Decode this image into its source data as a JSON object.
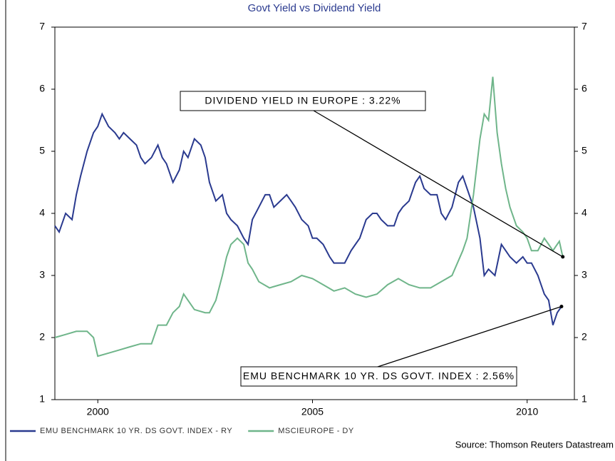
{
  "chart_data": {
    "type": "line",
    "title": "Govt Yield vs Dividend Yield",
    "source": "Source: Thomson Reuters Datastream",
    "xlim": [
      1999,
      2011.1
    ],
    "xticks": [
      2000,
      2005,
      2010
    ],
    "ylim": [
      1,
      7
    ],
    "yticks": [
      1,
      2,
      3,
      4,
      5,
      6,
      7
    ],
    "y2lim": [
      1,
      7
    ],
    "y2ticks": [
      1,
      2,
      3,
      4,
      5,
      6,
      7
    ],
    "annotations": [
      "DIVIDEND YIELD IN EUROPE : 3.22%",
      "EMU BENCHMARK 10 YR. DS GOVT. INDEX : 2.56%"
    ],
    "series": [
      {
        "name": "EMU BENCHMARK 10 YR. DS GOVT. INDEX - RY",
        "color": "#2a3a8f",
        "x": [
          1999.0,
          1999.1,
          1999.25,
          1999.4,
          1999.5,
          1999.6,
          1999.75,
          1999.9,
          2000.0,
          2000.1,
          2000.25,
          2000.4,
          2000.5,
          2000.6,
          2000.75,
          2000.9,
          2001.0,
          2001.1,
          2001.25,
          2001.4,
          2001.5,
          2001.6,
          2001.75,
          2001.9,
          2002.0,
          2002.1,
          2002.25,
          2002.4,
          2002.5,
          2002.6,
          2002.75,
          2002.9,
          2003.0,
          2003.1,
          2003.25,
          2003.4,
          2003.5,
          2003.6,
          2003.75,
          2003.9,
          2004.0,
          2004.1,
          2004.25,
          2004.4,
          2004.5,
          2004.6,
          2004.75,
          2004.9,
          2005.0,
          2005.1,
          2005.25,
          2005.4,
          2005.5,
          2005.6,
          2005.75,
          2005.9,
          2006.0,
          2006.1,
          2006.25,
          2006.4,
          2006.5,
          2006.6,
          2006.75,
          2006.9,
          2007.0,
          2007.1,
          2007.25,
          2007.4,
          2007.5,
          2007.6,
          2007.75,
          2007.9,
          2008.0,
          2008.1,
          2008.25,
          2008.4,
          2008.5,
          2008.6,
          2008.75,
          2008.9,
          2009.0,
          2009.1,
          2009.25,
          2009.4,
          2009.5,
          2009.6,
          2009.75,
          2009.9,
          2010.0,
          2010.1,
          2010.25,
          2010.4,
          2010.5,
          2010.6,
          2010.7,
          2010.8
        ],
        "values": [
          3.8,
          3.7,
          4.0,
          3.9,
          4.3,
          4.6,
          5.0,
          5.3,
          5.4,
          5.6,
          5.4,
          5.3,
          5.2,
          5.3,
          5.2,
          5.1,
          4.9,
          4.8,
          4.9,
          5.1,
          4.9,
          4.8,
          4.5,
          4.7,
          5.0,
          4.9,
          5.2,
          5.1,
          4.9,
          4.5,
          4.2,
          4.3,
          4.0,
          3.9,
          3.8,
          3.6,
          3.5,
          3.9,
          4.1,
          4.3,
          4.3,
          4.1,
          4.2,
          4.3,
          4.2,
          4.1,
          3.9,
          3.8,
          3.6,
          3.6,
          3.5,
          3.3,
          3.2,
          3.2,
          3.2,
          3.4,
          3.5,
          3.6,
          3.9,
          4.0,
          4.0,
          3.9,
          3.8,
          3.8,
          4.0,
          4.1,
          4.2,
          4.5,
          4.6,
          4.4,
          4.3,
          4.3,
          4.0,
          3.9,
          4.1,
          4.5,
          4.6,
          4.4,
          4.1,
          3.6,
          3.0,
          3.1,
          3.0,
          3.5,
          3.4,
          3.3,
          3.2,
          3.3,
          3.2,
          3.2,
          3.0,
          2.7,
          2.6,
          2.2,
          2.4,
          2.5
        ]
      },
      {
        "name": "MSCIEUROPE - DY",
        "color": "#6fb58a",
        "axis": "y2",
        "x": [
          1999.0,
          1999.25,
          1999.5,
          1999.75,
          1999.9,
          2000.0,
          2000.25,
          2000.5,
          2000.75,
          2001.0,
          2001.25,
          2001.4,
          2001.6,
          2001.75,
          2001.9,
          2002.0,
          2002.1,
          2002.25,
          2002.5,
          2002.6,
          2002.75,
          2002.9,
          2003.0,
          2003.1,
          2003.25,
          2003.4,
          2003.5,
          2003.6,
          2003.75,
          2004.0,
          2004.25,
          2004.5,
          2004.75,
          2005.0,
          2005.25,
          2005.5,
          2005.75,
          2006.0,
          2006.25,
          2006.5,
          2006.75,
          2007.0,
          2007.25,
          2007.5,
          2007.75,
          2008.0,
          2008.25,
          2008.5,
          2008.6,
          2008.75,
          2008.9,
          2009.0,
          2009.1,
          2009.2,
          2009.3,
          2009.4,
          2009.5,
          2009.6,
          2009.75,
          2009.9,
          2010.0,
          2010.1,
          2010.25,
          2010.4,
          2010.5,
          2010.6,
          2010.75,
          2010.83
        ],
        "values": [
          2.0,
          2.05,
          2.1,
          2.1,
          2.0,
          1.7,
          1.75,
          1.8,
          1.85,
          1.9,
          1.9,
          2.2,
          2.2,
          2.4,
          2.5,
          2.7,
          2.6,
          2.45,
          2.4,
          2.4,
          2.6,
          3.0,
          3.3,
          3.5,
          3.6,
          3.5,
          3.2,
          3.1,
          2.9,
          2.8,
          2.85,
          2.9,
          3.0,
          2.95,
          2.85,
          2.75,
          2.8,
          2.7,
          2.65,
          2.7,
          2.85,
          2.95,
          2.85,
          2.8,
          2.8,
          2.9,
          3.0,
          3.4,
          3.6,
          4.3,
          5.2,
          5.6,
          5.5,
          6.2,
          5.3,
          4.8,
          4.4,
          4.1,
          3.8,
          3.7,
          3.6,
          3.4,
          3.4,
          3.6,
          3.5,
          3.4,
          3.55,
          3.3
        ]
      }
    ]
  }
}
